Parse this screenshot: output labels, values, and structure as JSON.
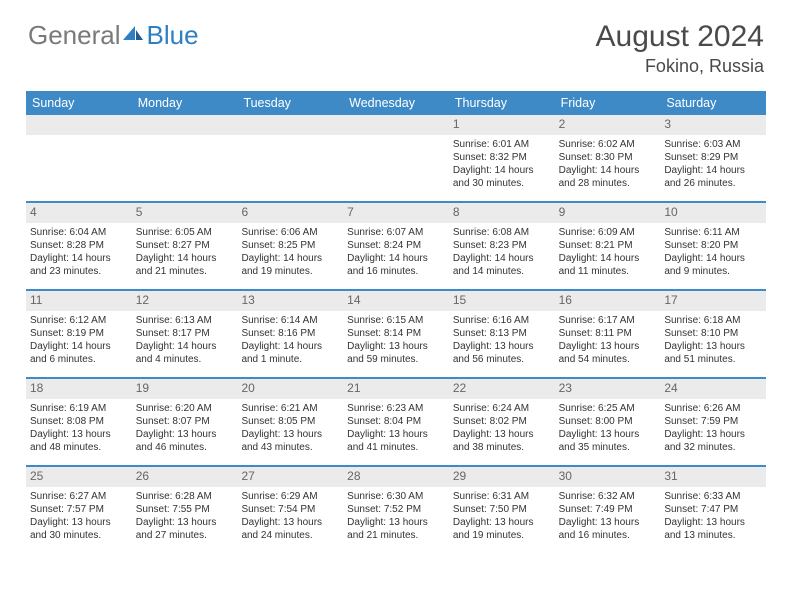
{
  "logo": {
    "text1": "General",
    "text2": "Blue"
  },
  "title": "August 2024",
  "location": "Fokino, Russia",
  "colors": {
    "header_bg": "#3e8ac7",
    "daynum_bg": "#ebebeb",
    "text": "#333333",
    "title": "#4a4a4a",
    "border": "#3e8ac7"
  },
  "days_of_week": [
    "Sunday",
    "Monday",
    "Tuesday",
    "Wednesday",
    "Thursday",
    "Friday",
    "Saturday"
  ],
  "weeks": [
    [
      {
        "n": "",
        "empty": true
      },
      {
        "n": "",
        "empty": true
      },
      {
        "n": "",
        "empty": true
      },
      {
        "n": "",
        "empty": true
      },
      {
        "n": "1",
        "sunrise": "Sunrise: 6:01 AM",
        "sunset": "Sunset: 8:32 PM",
        "daylight": "Daylight: 14 hours and 30 minutes."
      },
      {
        "n": "2",
        "sunrise": "Sunrise: 6:02 AM",
        "sunset": "Sunset: 8:30 PM",
        "daylight": "Daylight: 14 hours and 28 minutes."
      },
      {
        "n": "3",
        "sunrise": "Sunrise: 6:03 AM",
        "sunset": "Sunset: 8:29 PM",
        "daylight": "Daylight: 14 hours and 26 minutes."
      }
    ],
    [
      {
        "n": "4",
        "sunrise": "Sunrise: 6:04 AM",
        "sunset": "Sunset: 8:28 PM",
        "daylight": "Daylight: 14 hours and 23 minutes."
      },
      {
        "n": "5",
        "sunrise": "Sunrise: 6:05 AM",
        "sunset": "Sunset: 8:27 PM",
        "daylight": "Daylight: 14 hours and 21 minutes."
      },
      {
        "n": "6",
        "sunrise": "Sunrise: 6:06 AM",
        "sunset": "Sunset: 8:25 PM",
        "daylight": "Daylight: 14 hours and 19 minutes."
      },
      {
        "n": "7",
        "sunrise": "Sunrise: 6:07 AM",
        "sunset": "Sunset: 8:24 PM",
        "daylight": "Daylight: 14 hours and 16 minutes."
      },
      {
        "n": "8",
        "sunrise": "Sunrise: 6:08 AM",
        "sunset": "Sunset: 8:23 PM",
        "daylight": "Daylight: 14 hours and 14 minutes."
      },
      {
        "n": "9",
        "sunrise": "Sunrise: 6:09 AM",
        "sunset": "Sunset: 8:21 PM",
        "daylight": "Daylight: 14 hours and 11 minutes."
      },
      {
        "n": "10",
        "sunrise": "Sunrise: 6:11 AM",
        "sunset": "Sunset: 8:20 PM",
        "daylight": "Daylight: 14 hours and 9 minutes."
      }
    ],
    [
      {
        "n": "11",
        "sunrise": "Sunrise: 6:12 AM",
        "sunset": "Sunset: 8:19 PM",
        "daylight": "Daylight: 14 hours and 6 minutes."
      },
      {
        "n": "12",
        "sunrise": "Sunrise: 6:13 AM",
        "sunset": "Sunset: 8:17 PM",
        "daylight": "Daylight: 14 hours and 4 minutes."
      },
      {
        "n": "13",
        "sunrise": "Sunrise: 6:14 AM",
        "sunset": "Sunset: 8:16 PM",
        "daylight": "Daylight: 14 hours and 1 minute."
      },
      {
        "n": "14",
        "sunrise": "Sunrise: 6:15 AM",
        "sunset": "Sunset: 8:14 PM",
        "daylight": "Daylight: 13 hours and 59 minutes."
      },
      {
        "n": "15",
        "sunrise": "Sunrise: 6:16 AM",
        "sunset": "Sunset: 8:13 PM",
        "daylight": "Daylight: 13 hours and 56 minutes."
      },
      {
        "n": "16",
        "sunrise": "Sunrise: 6:17 AM",
        "sunset": "Sunset: 8:11 PM",
        "daylight": "Daylight: 13 hours and 54 minutes."
      },
      {
        "n": "17",
        "sunrise": "Sunrise: 6:18 AM",
        "sunset": "Sunset: 8:10 PM",
        "daylight": "Daylight: 13 hours and 51 minutes."
      }
    ],
    [
      {
        "n": "18",
        "sunrise": "Sunrise: 6:19 AM",
        "sunset": "Sunset: 8:08 PM",
        "daylight": "Daylight: 13 hours and 48 minutes."
      },
      {
        "n": "19",
        "sunrise": "Sunrise: 6:20 AM",
        "sunset": "Sunset: 8:07 PM",
        "daylight": "Daylight: 13 hours and 46 minutes."
      },
      {
        "n": "20",
        "sunrise": "Sunrise: 6:21 AM",
        "sunset": "Sunset: 8:05 PM",
        "daylight": "Daylight: 13 hours and 43 minutes."
      },
      {
        "n": "21",
        "sunrise": "Sunrise: 6:23 AM",
        "sunset": "Sunset: 8:04 PM",
        "daylight": "Daylight: 13 hours and 41 minutes."
      },
      {
        "n": "22",
        "sunrise": "Sunrise: 6:24 AM",
        "sunset": "Sunset: 8:02 PM",
        "daylight": "Daylight: 13 hours and 38 minutes."
      },
      {
        "n": "23",
        "sunrise": "Sunrise: 6:25 AM",
        "sunset": "Sunset: 8:00 PM",
        "daylight": "Daylight: 13 hours and 35 minutes."
      },
      {
        "n": "24",
        "sunrise": "Sunrise: 6:26 AM",
        "sunset": "Sunset: 7:59 PM",
        "daylight": "Daylight: 13 hours and 32 minutes."
      }
    ],
    [
      {
        "n": "25",
        "sunrise": "Sunrise: 6:27 AM",
        "sunset": "Sunset: 7:57 PM",
        "daylight": "Daylight: 13 hours and 30 minutes."
      },
      {
        "n": "26",
        "sunrise": "Sunrise: 6:28 AM",
        "sunset": "Sunset: 7:55 PM",
        "daylight": "Daylight: 13 hours and 27 minutes."
      },
      {
        "n": "27",
        "sunrise": "Sunrise: 6:29 AM",
        "sunset": "Sunset: 7:54 PM",
        "daylight": "Daylight: 13 hours and 24 minutes."
      },
      {
        "n": "28",
        "sunrise": "Sunrise: 6:30 AM",
        "sunset": "Sunset: 7:52 PM",
        "daylight": "Daylight: 13 hours and 21 minutes."
      },
      {
        "n": "29",
        "sunrise": "Sunrise: 6:31 AM",
        "sunset": "Sunset: 7:50 PM",
        "daylight": "Daylight: 13 hours and 19 minutes."
      },
      {
        "n": "30",
        "sunrise": "Sunrise: 6:32 AM",
        "sunset": "Sunset: 7:49 PM",
        "daylight": "Daylight: 13 hours and 16 minutes."
      },
      {
        "n": "31",
        "sunrise": "Sunrise: 6:33 AM",
        "sunset": "Sunset: 7:47 PM",
        "daylight": "Daylight: 13 hours and 13 minutes."
      }
    ]
  ]
}
